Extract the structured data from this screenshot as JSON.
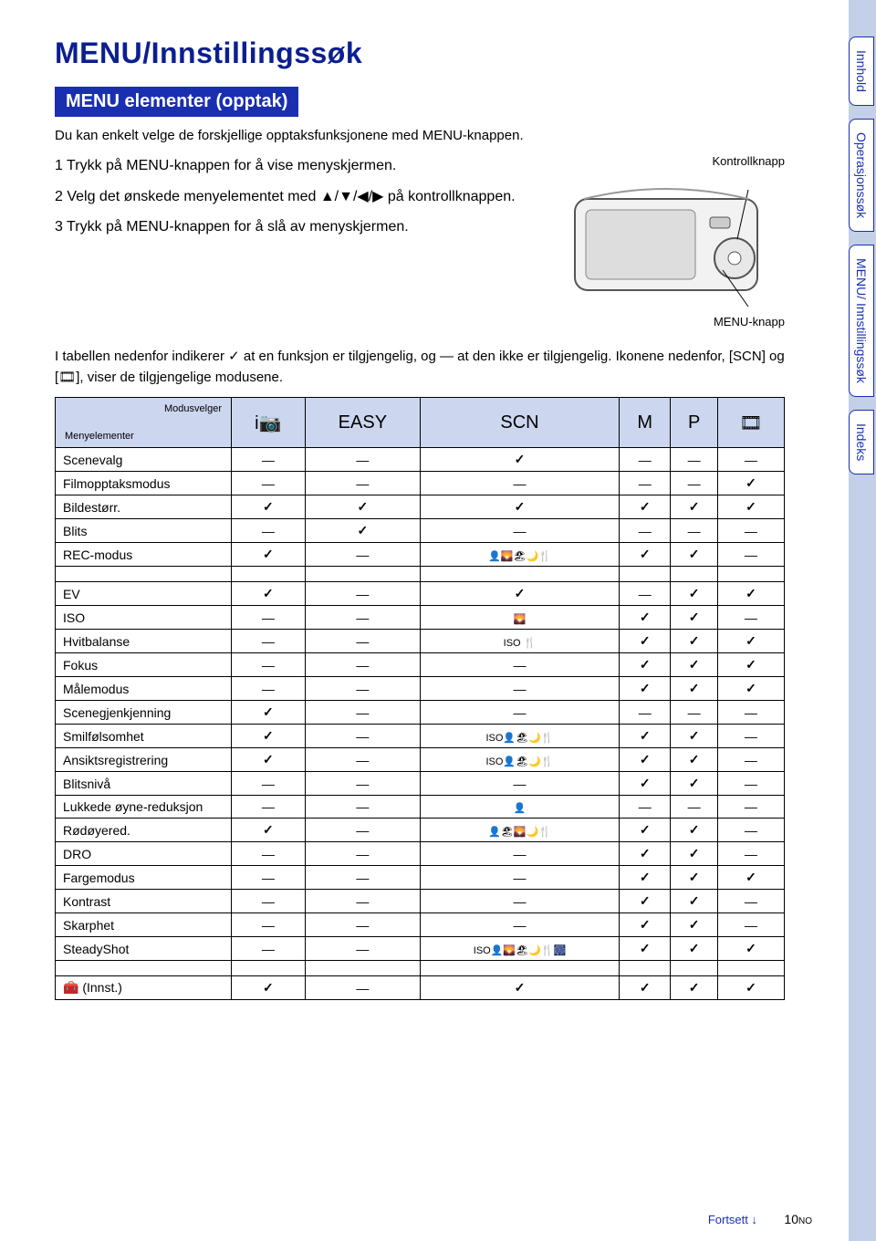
{
  "header": {
    "title": "MENU/Innstillingssøk",
    "subtitle": "MENU elementer (opptak)",
    "intro": "Du kan enkelt velge de forskjellige opptaksfunksjonene med MENU-knappen."
  },
  "steps": [
    "1 Trykk på MENU-knappen for å vise menyskjermen.",
    "2 Velg det ønskede menyelementet med ▲/▼/◀/▶ på kontrollknappen.",
    "3 Trykk på MENU-knappen for å slå av menyskjermen."
  ],
  "camera": {
    "control_label": "Kontrollknapp",
    "menu_label": "MENU-knapp"
  },
  "table_note": "I tabellen nedenfor indikerer ✓ at en funksjon er tilgjengelig, og — at den ikke er tilgjengelig. Ikonene nedenfor, [SCN] og [🎞], viser de tilgjengelige modusene.",
  "table": {
    "corner_top": "Modusvelger",
    "corner_bottom": "Menyelementer",
    "headers": [
      "i📷",
      "EASY",
      "SCN",
      "M",
      "P",
      "🎞"
    ],
    "groups": [
      {
        "rows": [
          {
            "label": "Scenevalg",
            "cells": [
              "—",
              "—",
              "✓",
              "—",
              "—",
              "—"
            ]
          },
          {
            "label": "Filmopptaksmodus",
            "cells": [
              "—",
              "—",
              "—",
              "—",
              "—",
              "✓"
            ]
          },
          {
            "label": "Bildestørr.",
            "cells": [
              "✓",
              "✓",
              "✓",
              "✓",
              "✓",
              "✓"
            ]
          },
          {
            "label": "Blits",
            "cells": [
              "—",
              "✓",
              "—",
              "—",
              "—",
              "—"
            ]
          },
          {
            "label": "REC-modus",
            "cells": [
              "✓",
              "—",
              "👤🌄🏖🌙🍴",
              "✓",
              "✓",
              "—"
            ]
          }
        ]
      },
      {
        "rows": [
          {
            "label": "EV",
            "cells": [
              "✓",
              "—",
              "✓",
              "—",
              "✓",
              "✓"
            ]
          },
          {
            "label": "ISO",
            "cells": [
              "—",
              "—",
              "🌄",
              "✓",
              "✓",
              "—"
            ]
          },
          {
            "label": "Hvitbalanse",
            "cells": [
              "—",
              "—",
              "ISO 🍴",
              "✓",
              "✓",
              "✓"
            ]
          },
          {
            "label": "Fokus",
            "cells": [
              "—",
              "—",
              "—",
              "✓",
              "✓",
              "✓"
            ]
          },
          {
            "label": "Målemodus",
            "cells": [
              "—",
              "—",
              "—",
              "✓",
              "✓",
              "✓"
            ]
          },
          {
            "label": "Scenegjenkjenning",
            "cells": [
              "✓",
              "—",
              "—",
              "—",
              "—",
              "—"
            ]
          },
          {
            "label": "Smilfølsomhet",
            "cells": [
              "✓",
              "—",
              "ISO👤🏖🌙🍴",
              "✓",
              "✓",
              "—"
            ]
          },
          {
            "label": "Ansiktsregistrering",
            "cells": [
              "✓",
              "—",
              "ISO👤🏖🌙🍴",
              "✓",
              "✓",
              "—"
            ]
          },
          {
            "label": "Blitsnivå",
            "cells": [
              "—",
              "—",
              "—",
              "✓",
              "✓",
              "—"
            ]
          },
          {
            "label": "Lukkede øyne-reduksjon",
            "cells": [
              "—",
              "—",
              "👤",
              "—",
              "—",
              "—"
            ]
          },
          {
            "label": "Rødøyered.",
            "cells": [
              "✓",
              "—",
              "👤🏖🌄🌙🍴",
              "✓",
              "✓",
              "—"
            ]
          },
          {
            "label": "DRO",
            "cells": [
              "—",
              "—",
              "—",
              "✓",
              "✓",
              "—"
            ]
          },
          {
            "label": "Fargemodus",
            "cells": [
              "—",
              "—",
              "—",
              "✓",
              "✓",
              "✓"
            ]
          },
          {
            "label": "Kontrast",
            "cells": [
              "—",
              "—",
              "—",
              "✓",
              "✓",
              "—"
            ]
          },
          {
            "label": "Skarphet",
            "cells": [
              "—",
              "—",
              "—",
              "✓",
              "✓",
              "—"
            ]
          },
          {
            "label": "SteadyShot",
            "cells": [
              "—",
              "—",
              "ISO👤🌄🏖🌙🍴🎆",
              "✓",
              "✓",
              "✓"
            ]
          }
        ]
      },
      {
        "rows": [
          {
            "label": "🧰 (Innst.)",
            "cells": [
              "✓",
              "—",
              "✓",
              "✓",
              "✓",
              "✓"
            ]
          }
        ]
      }
    ]
  },
  "tabs": [
    "Innhold",
    "Operasjonssøk",
    "MENU/\nInnstillingssøk",
    "Indeks"
  ],
  "footer": {
    "continue": "Fortsett ↓",
    "page": "10",
    "suffix": "NO"
  }
}
